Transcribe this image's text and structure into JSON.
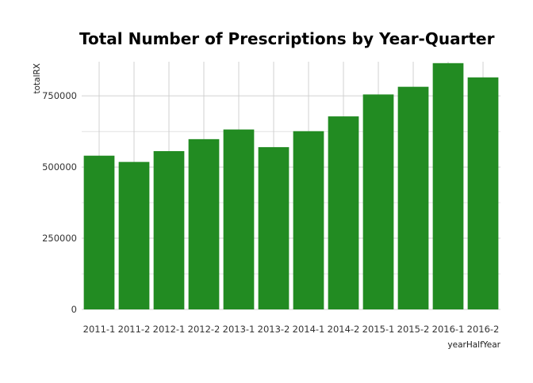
{
  "chart_data": {
    "type": "bar",
    "title": "Total Number of Prescriptions by Year-Quarter",
    "xlabel": "yearHalfYear",
    "ylabel": "totalRX",
    "categories": [
      "2011-1",
      "2011-2",
      "2012-1",
      "2012-2",
      "2013-1",
      "2013-2",
      "2014-1",
      "2014-2",
      "2015-1",
      "2015-2",
      "2016-1",
      "2016-2"
    ],
    "values": [
      540000,
      518000,
      556000,
      598000,
      632000,
      570000,
      626000,
      678000,
      755000,
      782000,
      865000,
      815000
    ],
    "y_ticks": [
      0,
      250000,
      500000,
      750000
    ],
    "y_tick_labels": [
      "0",
      "250000",
      "500000",
      "750000"
    ],
    "ylim": [
      0,
      870000
    ],
    "grid": true,
    "bar_color": "#228b22",
    "grid_color": "#d0d0d0"
  }
}
